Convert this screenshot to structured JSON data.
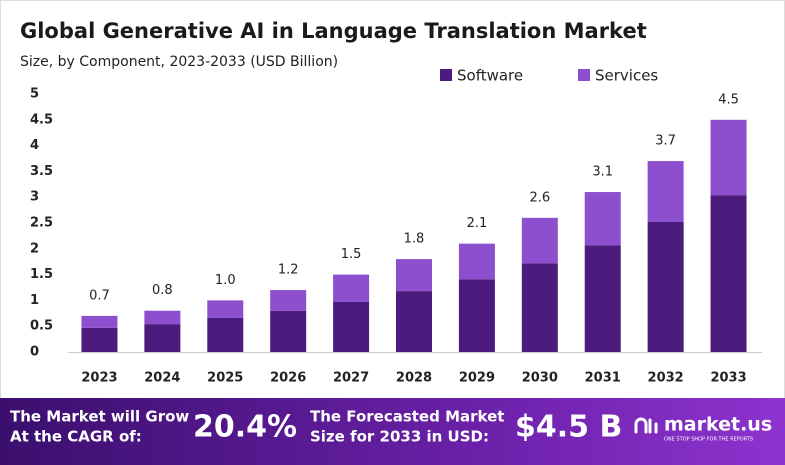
{
  "chart_data": {
    "type": "stacked-bar",
    "title": "Global Generative AI in Language Translation Market",
    "subtitle": "Size, by Component, 2023-2033 (USD Billion)",
    "categories": [
      "2023",
      "2024",
      "2025",
      "2026",
      "2027",
      "2028",
      "2029",
      "2030",
      "2031",
      "2032",
      "2033"
    ],
    "series": [
      {
        "name": "Software",
        "color": "#4b1c7d",
        "values": [
          0.47,
          0.54,
          0.66,
          0.8,
          0.97,
          1.18,
          1.41,
          1.72,
          2.07,
          2.52,
          3.04
        ]
      },
      {
        "name": "Services",
        "color": "#8e4fcf",
        "values": [
          0.23,
          0.26,
          0.34,
          0.4,
          0.53,
          0.62,
          0.69,
          0.88,
          1.03,
          1.18,
          1.46
        ]
      }
    ],
    "totals": {
      "values": [
        0.7,
        0.8,
        1.0,
        1.2,
        1.5,
        1.8,
        2.1,
        2.6,
        3.1,
        3.7,
        4.5
      ],
      "value_labels": [
        "0.7",
        "0.8",
        "1.0",
        "1.2",
        "1.5",
        "1.8",
        "2.1",
        "2.6",
        "3.1",
        "3.7",
        "4.5"
      ]
    },
    "ylim": [
      0,
      5
    ],
    "yticks": [
      0,
      0.5,
      1,
      1.5,
      2,
      2.5,
      3,
      3.5,
      4,
      4.5,
      5
    ],
    "grid": false,
    "legend": "top-right"
  },
  "footer": {
    "cagr_label": [
      "The Market will Grow",
      "At the CAGR of:"
    ],
    "cagr": "20.4%",
    "forecast_label": [
      "The Forecasted Market",
      "Size for 2033 in USD:"
    ],
    "forecast": "$4.5 B",
    "brand": "market.us",
    "tagline": "ONE STOP SHOP FOR THE REPORTS"
  }
}
